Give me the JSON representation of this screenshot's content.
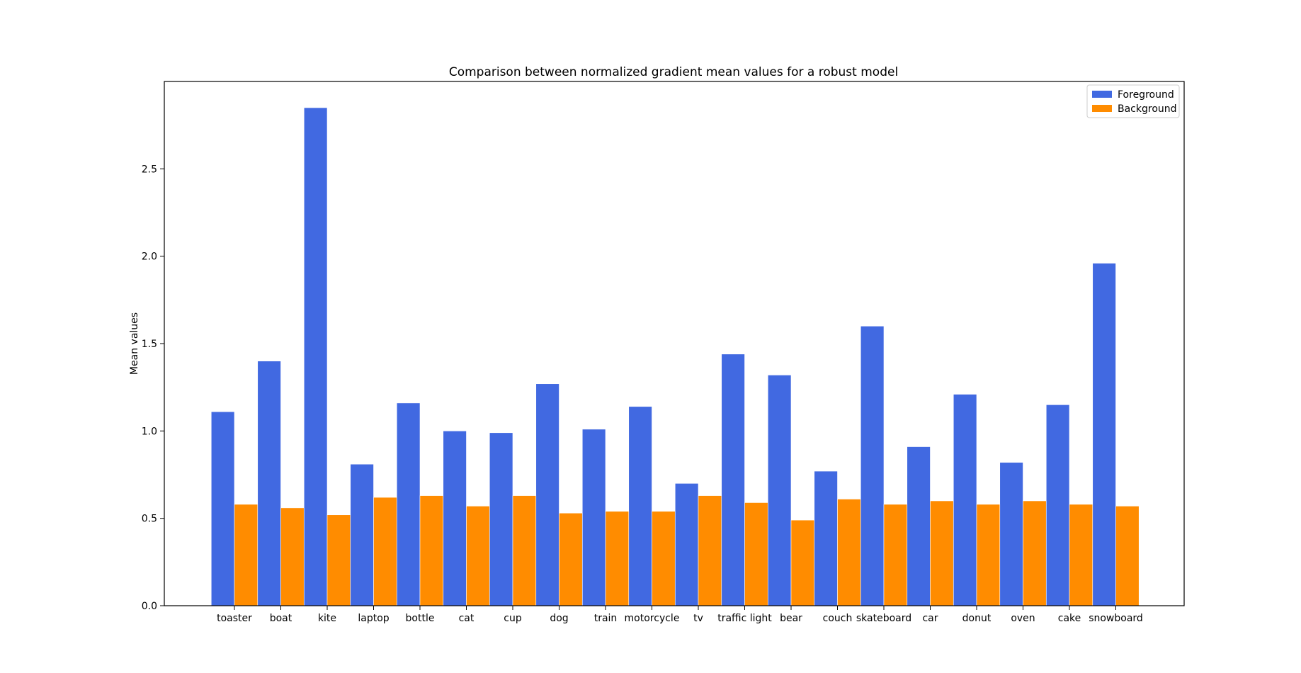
{
  "chart_data": {
    "type": "bar",
    "title": "Comparison between normalized gradient mean values for a robust model",
    "xlabel": "",
    "ylabel": "Mean values",
    "ylim": [
      0,
      3.0
    ],
    "yticks": [
      0.0,
      0.5,
      1.0,
      1.5,
      2.0,
      2.5
    ],
    "ytick_labels": [
      "0.0",
      "0.5",
      "1.0",
      "1.5",
      "2.0",
      "2.5"
    ],
    "categories": [
      "toaster",
      "boat",
      "kite",
      "laptop",
      "bottle",
      "cat",
      "cup",
      "dog",
      "train",
      "motorcycle",
      "tv",
      "traffic light",
      "bear",
      "couch",
      "skateboard",
      "car",
      "donut",
      "oven",
      "cake",
      "snowboard"
    ],
    "series": [
      {
        "name": "Foreground",
        "color": "#4169e1",
        "values": [
          1.11,
          1.4,
          2.85,
          0.81,
          1.16,
          1.0,
          0.99,
          1.27,
          1.01,
          1.14,
          0.7,
          1.44,
          1.32,
          0.77,
          1.6,
          0.91,
          1.21,
          0.82,
          1.15,
          1.96
        ]
      },
      {
        "name": "Background",
        "color": "#ff8c00",
        "values": [
          0.58,
          0.56,
          0.52,
          0.62,
          0.63,
          0.57,
          0.63,
          0.53,
          0.54,
          0.54,
          0.63,
          0.59,
          0.49,
          0.61,
          0.58,
          0.6,
          0.58,
          0.6,
          0.58,
          0.57
        ]
      }
    ],
    "legend_position": "upper right",
    "grid": false
  }
}
